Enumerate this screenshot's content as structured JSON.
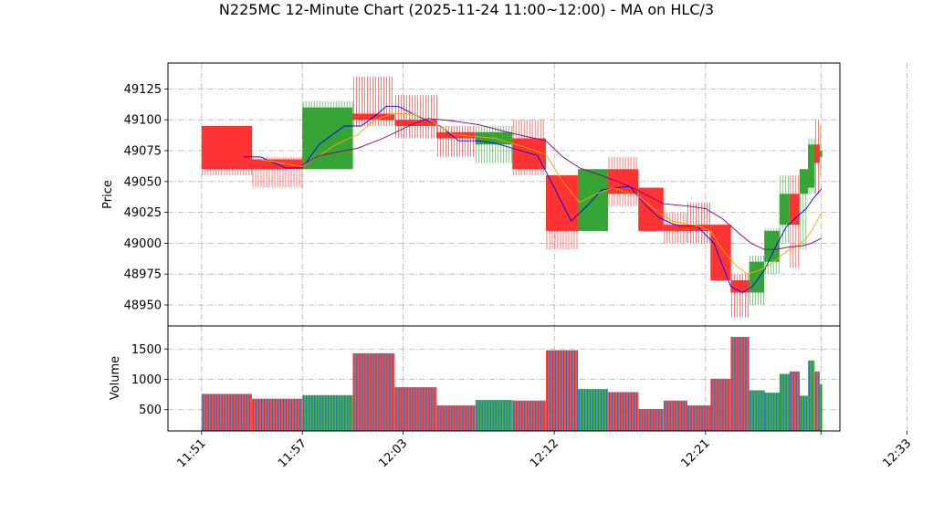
{
  "chart_data": {
    "type": "candlestick",
    "title": "N225MC 12-Minute Chart (2025-11-24 11:00~12:00) - MA on HLC/3",
    "ylabel_price": "Price",
    "ylabel_volume": "Volume",
    "price_ylim": [
      48933,
      49146
    ],
    "price_yticks": [
      48950,
      48975,
      49000,
      49025,
      49050,
      49075,
      49100,
      49125
    ],
    "volume_ylim": [
      150,
      1880
    ],
    "volume_yticks": [
      500,
      1000,
      1500
    ],
    "x_tick_labels": [
      "11:51",
      "11:57",
      "12:03",
      "12:12",
      "12:21",
      "12:33"
    ],
    "x_tick_times": [
      0,
      6,
      12,
      21,
      30,
      42
    ],
    "time_range": [
      -2,
      38
    ],
    "grid": true,
    "colors": {
      "up": "#2ca02c",
      "down": "#ff2a2a",
      "ma1": "#0000ff",
      "ma2": "#ffa500",
      "ma3": "#800080",
      "volume_edge": "#1f77b4"
    },
    "candles": [
      {
        "t": 0.0,
        "w": 3.0,
        "open": 49095,
        "close": 49060,
        "high": 49095,
        "low": 49055,
        "volume": 760
      },
      {
        "t": 3.0,
        "w": 3.0,
        "open": 49068,
        "close": 49060,
        "high": 49070,
        "low": 49045,
        "volume": 680
      },
      {
        "t": 6.0,
        "w": 3.0,
        "open": 49060,
        "close": 49110,
        "high": 49115,
        "low": 49060,
        "volume": 740
      },
      {
        "t": 9.0,
        "w": 2.5,
        "open": 49105,
        "close": 49100,
        "high": 49135,
        "low": 49095,
        "volume": 1430
      },
      {
        "t": 11.5,
        "w": 2.5,
        "open": 49100,
        "close": 49095,
        "high": 49120,
        "low": 49085,
        "volume": 870
      },
      {
        "t": 14.0,
        "w": 2.3,
        "open": 49090,
        "close": 49085,
        "high": 49095,
        "low": 49070,
        "volume": 570
      },
      {
        "t": 16.3,
        "w": 2.2,
        "open": 49080,
        "close": 49090,
        "high": 49095,
        "low": 49065,
        "volume": 660
      },
      {
        "t": 18.5,
        "w": 2.0,
        "open": 49085,
        "close": 49060,
        "high": 49100,
        "low": 49055,
        "volume": 650
      },
      {
        "t": 20.5,
        "w": 1.9,
        "open": 49055,
        "close": 49010,
        "high": 49055,
        "low": 48995,
        "volume": 1480
      },
      {
        "t": 22.4,
        "w": 1.8,
        "open": 49010,
        "close": 49060,
        "high": 49060,
        "low": 49010,
        "volume": 840
      },
      {
        "t": 24.2,
        "w": 1.8,
        "open": 49060,
        "close": 49040,
        "high": 49070,
        "low": 49030,
        "volume": 790
      },
      {
        "t": 26.0,
        "w": 1.5,
        "open": 49045,
        "close": 49010,
        "high": 49045,
        "low": 49010,
        "volume": 510
      },
      {
        "t": 27.5,
        "w": 1.4,
        "open": 49015,
        "close": 49010,
        "high": 49025,
        "low": 49000,
        "volume": 650
      },
      {
        "t": 28.9,
        "w": 1.4,
        "open": 49015,
        "close": 49010,
        "high": 49033,
        "low": 49000,
        "volume": 570
      },
      {
        "t": 30.3,
        "w": 1.2,
        "open": 49015,
        "close": 48970,
        "high": 49015,
        "low": 48970,
        "volume": 1010
      },
      {
        "t": 31.5,
        "w": 1.1,
        "open": 48970,
        "close": 48960,
        "high": 48975,
        "low": 48940,
        "volume": 1700
      },
      {
        "t": 32.6,
        "w": 0.9,
        "open": 48960,
        "close": 48985,
        "high": 48990,
        "low": 48950,
        "volume": 820
      },
      {
        "t": 33.5,
        "w": 0.9,
        "open": 48985,
        "close": 49010,
        "high": 49012,
        "low": 48975,
        "volume": 780
      },
      {
        "t": 34.4,
        "w": 0.6,
        "open": 49015,
        "close": 49040,
        "high": 49055,
        "low": 49000,
        "volume": 1090
      },
      {
        "t": 35.0,
        "w": 0.6,
        "open": 49040,
        "close": 49015,
        "high": 49055,
        "low": 48980,
        "volume": 1130
      },
      {
        "t": 35.6,
        "w": 0.5,
        "open": 49040,
        "close": 49060,
        "high": 49060,
        "low": 48995,
        "volume": 730
      },
      {
        "t": 36.1,
        "w": 0.4,
        "open": 49045,
        "close": 49080,
        "high": 49085,
        "low": 49040,
        "volume": 1310
      },
      {
        "t": 36.5,
        "w": 0.3,
        "open": 49080,
        "close": 49065,
        "high": 49100,
        "low": 49040,
        "volume": 1130
      },
      {
        "t": 36.8,
        "w": 0.15,
        "open": 49070,
        "close": 49075,
        "high": 49095,
        "low": 49055,
        "volume": 920
      }
    ],
    "series": [
      {
        "color": "#0000ff",
        "points": [
          [
            2.5,
            49070
          ],
          [
            3.5,
            49070
          ],
          [
            5.0,
            49061
          ],
          [
            6.0,
            49061
          ],
          [
            7.0,
            49080
          ],
          [
            8.5,
            49095
          ],
          [
            9.5,
            49095
          ],
          [
            10.5,
            49105
          ],
          [
            11.0,
            49111
          ],
          [
            11.7,
            49111
          ],
          [
            13.0,
            49102
          ],
          [
            14.2,
            49095
          ],
          [
            15.3,
            49083
          ],
          [
            16.5,
            49083
          ],
          [
            17.5,
            49081
          ],
          [
            19.0,
            49075
          ],
          [
            20.0,
            49071
          ],
          [
            21.0,
            49045
          ],
          [
            22.0,
            49018
          ],
          [
            23.0,
            49031
          ],
          [
            23.8,
            49043
          ],
          [
            24.6,
            49045
          ],
          [
            25.5,
            49046
          ],
          [
            26.5,
            49030
          ],
          [
            27.2,
            49021
          ],
          [
            28.0,
            49016
          ],
          [
            28.5,
            49014
          ],
          [
            29.5,
            49014
          ],
          [
            30.5,
            49000
          ],
          [
            31.5,
            48965
          ],
          [
            32.2,
            48960
          ],
          [
            32.8,
            48965
          ],
          [
            33.5,
            48978
          ],
          [
            34.2,
            48998
          ],
          [
            34.8,
            49013
          ],
          [
            35.4,
            49021
          ],
          [
            36.0,
            49028
          ],
          [
            36.4,
            49036
          ],
          [
            36.9,
            49044
          ]
        ]
      },
      {
        "color": "#ffa500",
        "points": [
          [
            3.5,
            49068
          ],
          [
            6.0,
            49062
          ],
          [
            8.0,
            49080
          ],
          [
            9.3,
            49088
          ],
          [
            10.3,
            49100
          ],
          [
            11.5,
            49105
          ],
          [
            12.5,
            49105
          ],
          [
            13.5,
            49100
          ],
          [
            15.0,
            49088
          ],
          [
            17.5,
            49085
          ],
          [
            19.2,
            49078
          ],
          [
            20.5,
            49072
          ],
          [
            21.5,
            49050
          ],
          [
            22.5,
            49033
          ],
          [
            23.5,
            49040
          ],
          [
            24.5,
            49045
          ],
          [
            26.0,
            49038
          ],
          [
            27.0,
            49027
          ],
          [
            28.0,
            49018
          ],
          [
            29.5,
            49014
          ],
          [
            30.3,
            49010
          ],
          [
            31.0,
            48995
          ],
          [
            31.8,
            48982
          ],
          [
            32.5,
            48975
          ],
          [
            33.2,
            48978
          ],
          [
            33.8,
            48982
          ],
          [
            34.5,
            48990
          ],
          [
            35.0,
            48995
          ],
          [
            35.5,
            48998
          ],
          [
            36.0,
            49004
          ],
          [
            36.4,
            49012
          ],
          [
            36.9,
            49025
          ]
        ]
      },
      {
        "color": "#800080",
        "points": [
          [
            6.0,
            49063
          ],
          [
            7.0,
            49071
          ],
          [
            9.3,
            49077
          ],
          [
            10.8,
            49085
          ],
          [
            12.5,
            49096
          ],
          [
            13.5,
            49101
          ],
          [
            15.0,
            49099
          ],
          [
            16.5,
            49096
          ],
          [
            18.5,
            49089
          ],
          [
            20.5,
            49083
          ],
          [
            21.5,
            49070
          ],
          [
            22.5,
            49061
          ],
          [
            24.0,
            49054
          ],
          [
            25.5,
            49046
          ],
          [
            26.5,
            49039
          ],
          [
            27.5,
            49032
          ],
          [
            29.0,
            49030
          ],
          [
            30.0,
            49028
          ],
          [
            31.0,
            49020
          ],
          [
            32.0,
            49008
          ],
          [
            32.7,
            49000
          ],
          [
            33.5,
            48995
          ],
          [
            34.2,
            48995
          ],
          [
            35.0,
            48997
          ],
          [
            35.8,
            48998
          ],
          [
            36.3,
            49000
          ],
          [
            36.9,
            49004
          ]
        ]
      }
    ]
  }
}
